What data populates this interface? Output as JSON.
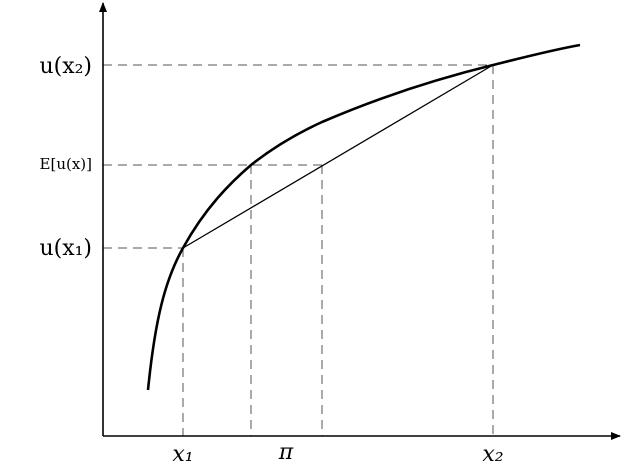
{
  "y_labels": [
    "u(x₂)",
    "E[u(x)]",
    "u(x₁)"
  ],
  "x_labels": [
    "x₁",
    "π",
    "x₂"
  ]
}
